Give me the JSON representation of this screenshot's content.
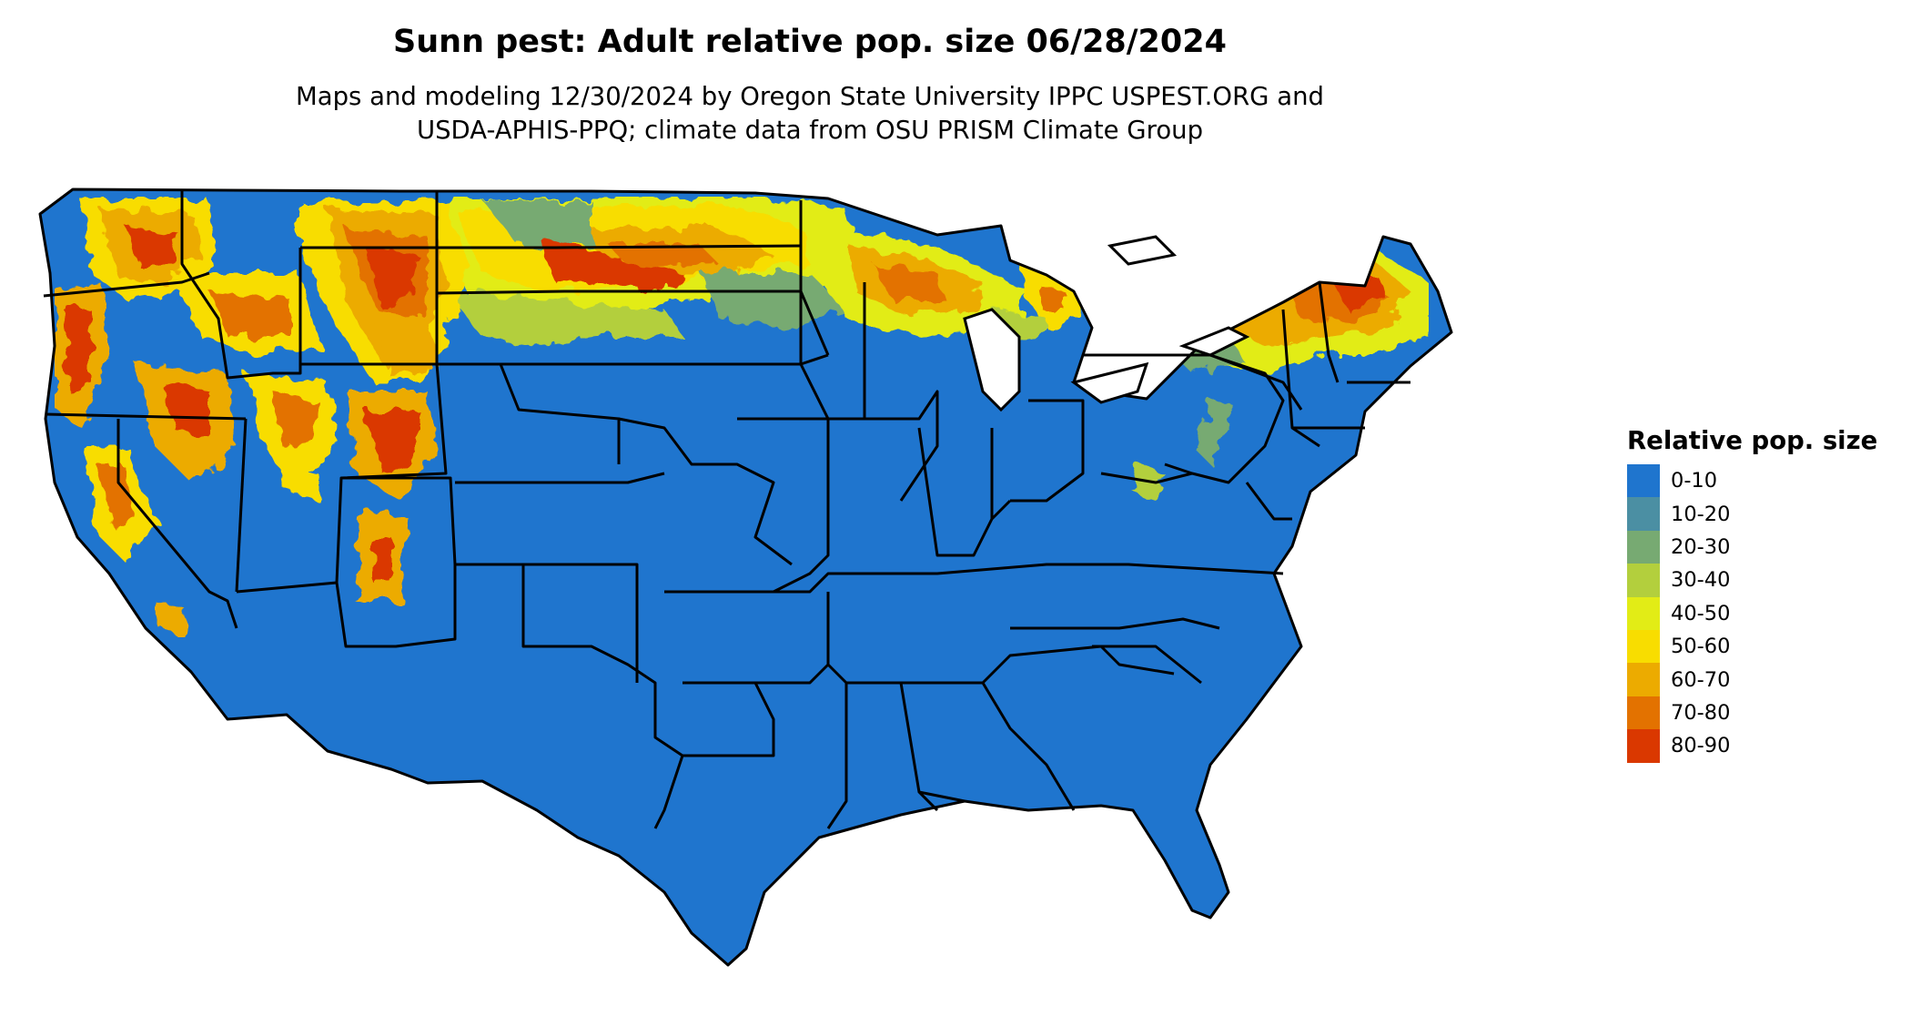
{
  "header": {
    "title": "Sunn pest: Adult relative pop. size 06/28/2024",
    "subtitle_line1": "Maps and modeling 12/30/2024 by Oregon State University IPPC USPEST.ORG and",
    "subtitle_line2": "USDA-APHIS-PPQ; climate data from OSU PRISM Climate Group"
  },
  "legend": {
    "title": "Relative pop. size",
    "items": [
      {
        "label": "0-10",
        "color": "#1f75ce"
      },
      {
        "label": "10-20",
        "color": "#4b8fa3"
      },
      {
        "label": "20-30",
        "color": "#77aa72"
      },
      {
        "label": "30-40",
        "color": "#b3cf3d"
      },
      {
        "label": "40-50",
        "color": "#e2ec16"
      },
      {
        "label": "50-60",
        "color": "#f8dd00"
      },
      {
        "label": "60-70",
        "color": "#ecab00"
      },
      {
        "label": "70-80",
        "color": "#e37200"
      },
      {
        "label": "80-90",
        "color": "#da3800"
      }
    ]
  },
  "colors": {
    "state_border": "#000000",
    "base": "#1f75ce"
  }
}
